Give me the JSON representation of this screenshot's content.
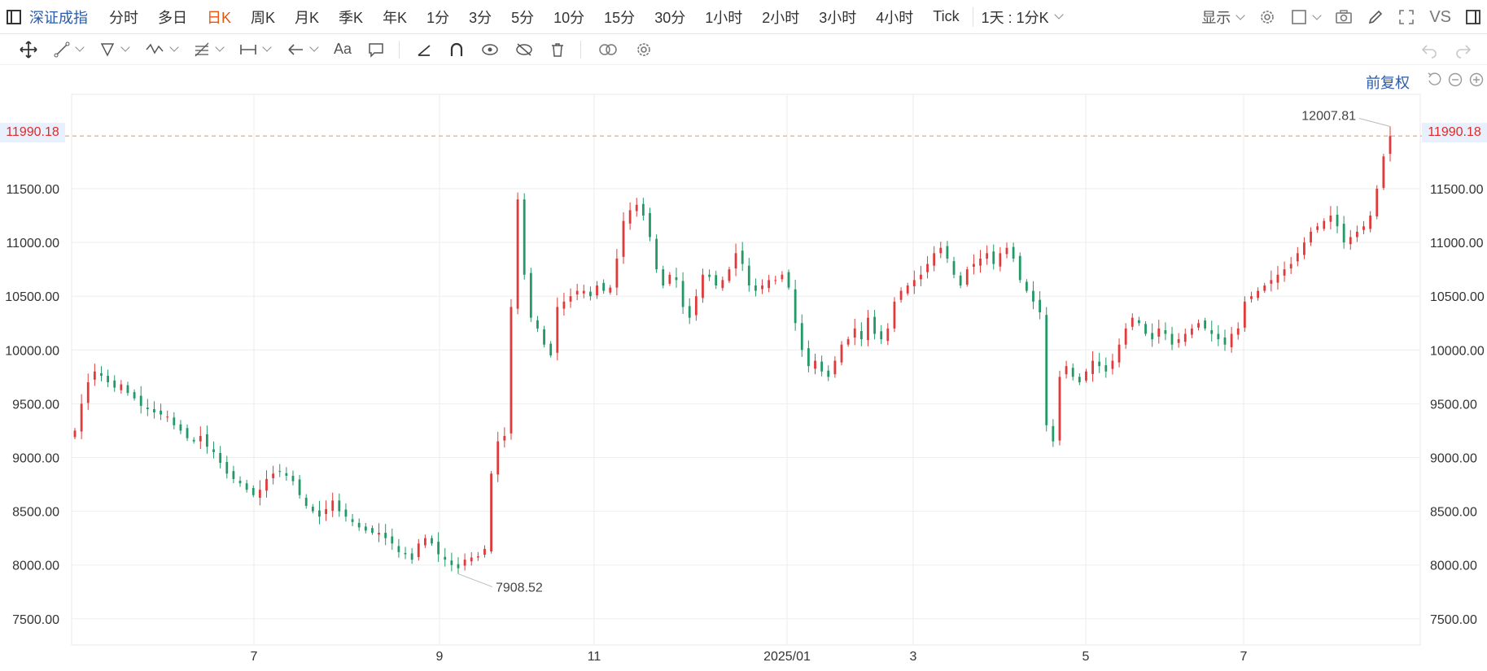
{
  "symbol": "深证成指",
  "periods": [
    "分时",
    "多日",
    "日K",
    "周K",
    "月K",
    "季K",
    "年K",
    "1分",
    "3分",
    "5分",
    "10分",
    "15分",
    "30分",
    "1小时",
    "2小时",
    "3小时",
    "4小时",
    "Tick"
  ],
  "active_period": "日K",
  "custom_period": "1天 : 1分K",
  "display_label": "显示",
  "compare_label": "VS",
  "adjust_label": "前复权",
  "current_price": "11990.18",
  "icons": {
    "left_toggle": "panel-toggle-icon",
    "settings": "gear-icon",
    "layout": "layout-icon",
    "camera": "camera-icon",
    "pen": "pen-icon",
    "fullscreen": "fullscreen-icon",
    "right_toggle": "panel-toggle-icon",
    "draw_tools": [
      "move-icon",
      "line-icon",
      "polygon-icon",
      "wave-icon",
      "fib-icon",
      "measure-icon",
      "arrow-icon",
      "text-icon",
      "comment-icon",
      "straight-line-icon",
      "magnet-icon",
      "eye-icon",
      "hide-icon",
      "trash-icon",
      "link-icon",
      "settings-icon"
    ]
  },
  "chart_data": {
    "type": "candlestick",
    "y_ticks": [
      "11500.00",
      "11000.00",
      "10500.00",
      "10000.00",
      "9500.00",
      "9000.00",
      "8500.00",
      "8000.00",
      "7500.00"
    ],
    "x_labels": [
      "7",
      "9",
      "11",
      "2025/01",
      "3",
      "5",
      "7"
    ],
    "ylim": [
      7300,
      12300
    ],
    "high_label": "12007.81",
    "low_label": "7908.52",
    "current_line": 11990.18,
    "colors": {
      "up": "#e03a3a",
      "down": "#229966",
      "price_line": "#f0a060",
      "grid": "#eeeeee"
    },
    "closes": [
      9250,
      9500,
      9700,
      9800,
      9760,
      9700,
      9650,
      9680,
      9600,
      9550,
      9480,
      9450,
      9420,
      9400,
      9380,
      9300,
      9250,
      9180,
      9150,
      9200,
      9100,
      9050,
      8950,
      8850,
      8800,
      8760,
      8700,
      8650,
      8700,
      8800,
      8850,
      8870,
      8830,
      8780,
      8650,
      8550,
      8500,
      8450,
      8520,
      8600,
      8500,
      8450,
      8400,
      8350,
      8320,
      8300,
      8300,
      8250,
      8200,
      8120,
      8100,
      8050,
      8200,
      8250,
      8200,
      8100,
      8050,
      8000,
      7970,
      8050,
      8070,
      8080,
      8150,
      8850,
      9150,
      9200,
      10400,
      11400,
      10700,
      10300,
      10200,
      10050,
      9950,
      10400,
      10450,
      10500,
      10550,
      10550,
      10500,
      10600,
      10550,
      10580,
      10850,
      11200,
      11300,
      11350,
      11250,
      11050,
      10750,
      10600,
      10700,
      10650,
      10400,
      10300,
      10500,
      10700,
      10680,
      10600,
      10650,
      10750,
      10900,
      10800,
      10600,
      10550,
      10600,
      10650,
      10650,
      10700,
      10580,
      10250,
      10000,
      9850,
      9900,
      9800,
      9750,
      9900,
      10050,
      10100,
      10200,
      10100,
      10300,
      10150,
      10100,
      10200,
      10450,
      10550,
      10600,
      10650,
      10700,
      10800,
      10900,
      10950,
      10850,
      10700,
      10600,
      10750,
      10800,
      10850,
      10900,
      10800,
      10900,
      10950,
      10850,
      10650,
      10550,
      10450,
      10350,
      9300,
      9150,
      9750,
      9850,
      9750,
      9700,
      9800,
      9900,
      9850,
      9800,
      9900,
      10050,
      10200,
      10300,
      10250,
      10150,
      10100,
      10200,
      10150,
      10050,
      10100,
      10150,
      10200,
      10250,
      10200,
      10150,
      10100,
      10050,
      10150,
      10200,
      10450,
      10500,
      10550,
      10600,
      10650,
      10700,
      10750,
      10800,
      10900,
      11000,
      11100,
      11150,
      11200,
      11250,
      11150,
      11000,
      11050,
      11100,
      11150,
      11250,
      11500,
      11800,
      11990
    ]
  }
}
